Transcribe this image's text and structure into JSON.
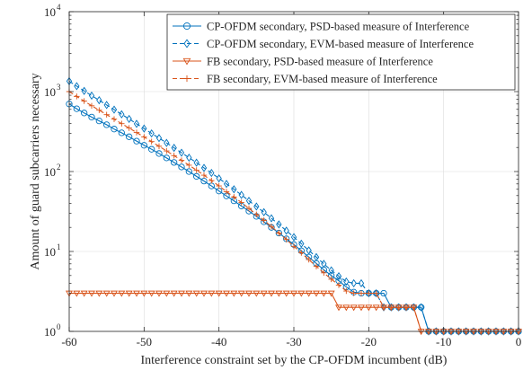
{
  "chart_data": {
    "type": "line",
    "xlabel": "Interference constraint set by the CP-OFDM incumbent (dB)",
    "ylabel": "Amount of guard subcarriers necessary",
    "xlim": [
      -60,
      0
    ],
    "ylim": [
      1,
      10000
    ],
    "yscale": "log",
    "grid": true,
    "legend_position": "top-right",
    "x_ticks": [
      "-60",
      "-50",
      "-40",
      "-30",
      "-20",
      "-10",
      "0"
    ],
    "y_ticks": [
      {
        "base": "10",
        "exp": "0"
      },
      {
        "base": "10",
        "exp": "1"
      },
      {
        "base": "10",
        "exp": "2"
      },
      {
        "base": "10",
        "exp": "3"
      },
      {
        "base": "10",
        "exp": "4"
      }
    ],
    "series": [
      {
        "name": "CP-OFDM secondary, PSD-based measure of Interference",
        "color": "#0072BD",
        "marker": "circle",
        "dash": "solid",
        "x": [
          -60,
          -59,
          -58,
          -57,
          -56,
          -55,
          -54,
          -53,
          -52,
          -51,
          -50,
          -49,
          -48,
          -47,
          -46,
          -45,
          -44,
          -43,
          -42,
          -41,
          -40,
          -39,
          -38,
          -37,
          -36,
          -35,
          -34,
          -33,
          -32,
          -31,
          -30,
          -29,
          -28,
          -27,
          -26,
          -25,
          -24,
          -23,
          -22,
          -21,
          -20,
          -19,
          -18,
          -17,
          -16,
          -15,
          -14,
          -13,
          -12,
          -11,
          -10,
          -9,
          -8,
          -7,
          -6,
          -5,
          -4,
          -3,
          -2,
          -1,
          0
        ],
        "y": [
          700,
          610,
          540,
          480,
          430,
          385,
          340,
          305,
          272,
          240,
          213,
          190,
          168,
          148,
          130,
          114,
          100,
          87,
          76,
          66,
          57,
          49.5,
          43,
          37,
          32,
          27.5,
          23.5,
          20,
          17,
          14.4,
          12.2,
          10.2,
          8.5,
          7.1,
          5.9,
          5,
          4.3,
          3.6,
          3.1,
          3,
          3,
          3,
          3,
          2,
          2,
          2,
          2,
          2,
          1,
          1,
          1,
          1,
          1,
          1,
          1,
          1,
          1,
          1,
          1,
          1,
          1
        ]
      },
      {
        "name": "CP-OFDM secondary, EVM-based measure of Interference",
        "color": "#0072BD",
        "marker": "diamond",
        "dash": "dashed",
        "x": [
          -60,
          -59,
          -58,
          -57,
          -56,
          -55,
          -54,
          -53,
          -52,
          -51,
          -50,
          -49,
          -48,
          -47,
          -46,
          -45,
          -44,
          -43,
          -42,
          -41,
          -40,
          -39,
          -38,
          -37,
          -36,
          -35,
          -34,
          -33,
          -32,
          -31,
          -30,
          -29,
          -28,
          -27,
          -26,
          -25,
          -24,
          -23,
          -22,
          -21,
          -20,
          -19,
          -18,
          -17,
          -16,
          -15,
          -14,
          -13,
          -12,
          -11,
          -10,
          -9,
          -8,
          -7,
          -6,
          -5,
          -4,
          -3,
          -2,
          -1,
          0
        ],
        "y": [
          1350,
          1170,
          1020,
          890,
          780,
          680,
          595,
          520,
          455,
          395,
          345,
          300,
          262,
          228,
          198,
          172,
          149,
          129,
          111,
          96,
          82,
          70,
          60,
          51,
          43,
          36.5,
          31,
          26,
          21.8,
          18.2,
          15.1,
          12.5,
          10.3,
          8.5,
          7,
          5.8,
          4.9,
          4.2,
          4,
          4,
          3,
          3,
          2,
          2,
          2,
          2,
          2,
          2,
          1,
          1,
          1,
          1,
          1,
          1,
          1,
          1,
          1,
          1,
          1,
          1,
          1
        ]
      },
      {
        "name": "FB secondary, PSD-based measure of Interference",
        "color": "#D95319",
        "marker": "triangle-down",
        "dash": "solid",
        "x": [
          -60,
          -59,
          -58,
          -57,
          -56,
          -55,
          -54,
          -53,
          -52,
          -51,
          -50,
          -49,
          -48,
          -47,
          -46,
          -45,
          -44,
          -43,
          -42,
          -41,
          -40,
          -39,
          -38,
          -37,
          -36,
          -35,
          -34,
          -33,
          -32,
          -31,
          -30,
          -29,
          -28,
          -27,
          -26,
          -25,
          -24,
          -23,
          -22,
          -21,
          -20,
          -19,
          -18,
          -17,
          -16,
          -15,
          -14,
          -13,
          -12,
          -11,
          -10,
          -9,
          -8,
          -7,
          -6,
          -5,
          -4,
          -3,
          -2,
          -1,
          0
        ],
        "y": [
          3,
          3,
          3,
          3,
          3,
          3,
          3,
          3,
          3,
          3,
          3,
          3,
          3,
          3,
          3,
          3,
          3,
          3,
          3,
          3,
          3,
          3,
          3,
          3,
          3,
          3,
          3,
          3,
          3,
          3,
          3,
          3,
          3,
          3,
          3,
          3,
          2,
          2,
          2,
          2,
          2,
          2,
          2,
          2,
          2,
          2,
          2,
          1,
          1,
          1,
          1,
          1,
          1,
          1,
          1,
          1,
          1,
          1,
          1,
          1,
          1
        ]
      },
      {
        "name": "FB secondary, EVM-based measure of Interference",
        "color": "#D95319",
        "marker": "plus",
        "dash": "dashed",
        "x": [
          -60,
          -59,
          -58,
          -57,
          -56,
          -55,
          -54,
          -53,
          -52,
          -51,
          -50,
          -49,
          -48,
          -47,
          -46,
          -45,
          -44,
          -43,
          -42,
          -41,
          -40,
          -39,
          -38,
          -37,
          -36,
          -35,
          -34,
          -33,
          -32,
          -31,
          -30,
          -29,
          -28,
          -27,
          -26,
          -25,
          -24,
          -23,
          -22,
          -21,
          -20,
          -19,
          -18,
          -17,
          -16,
          -15,
          -14,
          -13,
          -12,
          -11,
          -10,
          -9,
          -8,
          -7,
          -6,
          -5,
          -4,
          -3,
          -2,
          -1,
          0
        ],
        "y": [
          1000,
          870,
          760,
          665,
          585,
          515,
          452,
          397,
          350,
          308,
          270,
          237,
          207,
          181,
          158,
          138,
          120,
          104,
          90,
          77,
          66,
          56,
          48,
          41,
          34.5,
          29,
          24.5,
          20.5,
          17,
          14.1,
          11.6,
          9.6,
          7.9,
          6.5,
          5.4,
          4.5,
          3.8,
          3.2,
          3,
          3,
          3,
          3,
          2,
          2,
          2,
          2,
          2,
          1,
          1,
          1,
          1,
          1,
          1,
          1,
          1,
          1,
          1,
          1,
          1,
          1,
          1
        ]
      }
    ]
  }
}
